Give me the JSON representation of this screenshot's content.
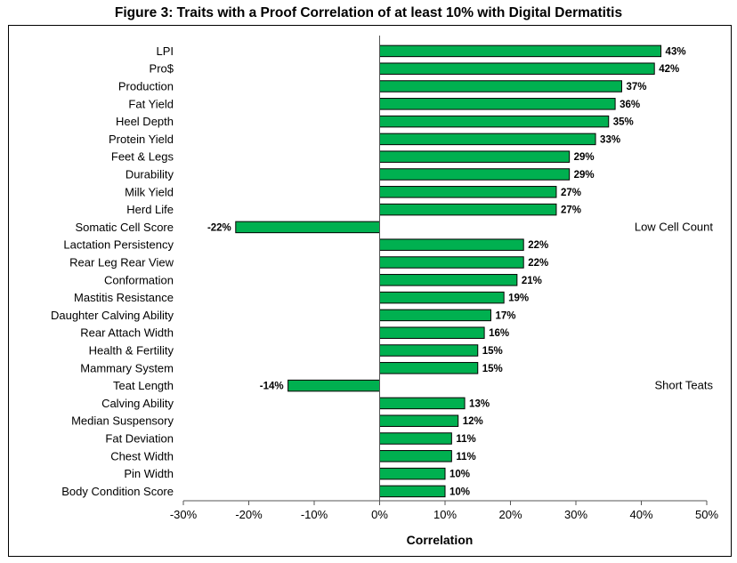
{
  "chart_data": {
    "type": "bar",
    "orientation": "horizontal",
    "title": "Figure 3: Traits with a Proof Correlation of at least 10% with Digital Dermatitis",
    "xlabel": "Correlation",
    "ylabel": "",
    "xlim": [
      -30,
      50
    ],
    "x_ticks": [
      "-30%",
      "-20%",
      "-10%",
      "0%",
      "10%",
      "20%",
      "30%",
      "40%",
      "50%"
    ],
    "grid": false,
    "bar_color": "#00b050",
    "categories": [
      "LPI",
      "Pro$",
      "Production",
      "Fat Yield",
      "Heel Depth",
      "Protein Yield",
      "Feet & Legs",
      "Durability",
      "Milk Yield",
      "Herd Life",
      "Somatic Cell Score",
      "Lactation Persistency",
      "Rear Leg Rear View",
      "Conformation",
      "Mastitis Resistance",
      "Daughter Calving Ability",
      "Rear Attach Width",
      "Health & Fertility",
      "Mammary System",
      "Teat Length",
      "Calving Ability",
      "Median Suspensory",
      "Fat Deviation",
      "Chest Width",
      "Pin Width",
      "Body Condition Score"
    ],
    "values": [
      43,
      42,
      37,
      36,
      35,
      33,
      29,
      29,
      27,
      27,
      -22,
      22,
      22,
      21,
      19,
      17,
      16,
      15,
      15,
      -14,
      13,
      12,
      11,
      11,
      10,
      10
    ],
    "value_labels": [
      "43%",
      "42%",
      "37%",
      "36%",
      "35%",
      "33%",
      "29%",
      "29%",
      "27%",
      "27%",
      "-22%",
      "22%",
      "22%",
      "21%",
      "19%",
      "17%",
      "16%",
      "15%",
      "15%",
      "-14%",
      "13%",
      "12%",
      "11%",
      "11%",
      "10%",
      "10%"
    ],
    "annotations": [
      {
        "text": "Low Cell Count",
        "category": "Somatic Cell Score"
      },
      {
        "text": "Short Teats",
        "category": "Teat Length"
      }
    ]
  }
}
